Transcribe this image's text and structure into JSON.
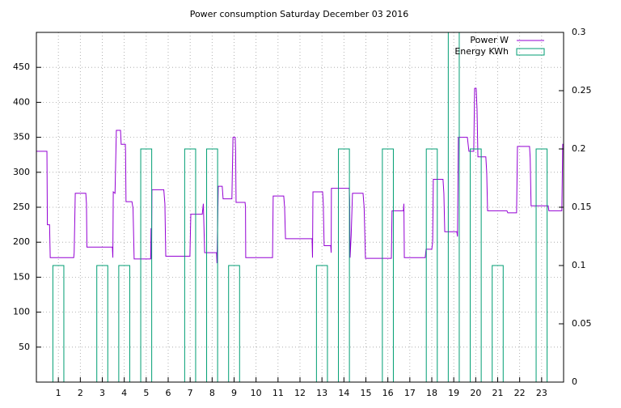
{
  "chart_data": {
    "type": "line",
    "title": "Power consumption Saturday December 03 2016",
    "xlim": [
      0,
      24
    ],
    "xticks": [
      1,
      2,
      3,
      4,
      5,
      6,
      7,
      8,
      9,
      10,
      11,
      12,
      13,
      14,
      15,
      16,
      17,
      18,
      19,
      20,
      21,
      22,
      23
    ],
    "ylim": [
      0,
      500
    ],
    "yticks": [
      50,
      100,
      150,
      200,
      250,
      300,
      350,
      400,
      450
    ],
    "y2lim": [
      0,
      0.3
    ],
    "y2ticks": [
      0,
      0.05,
      0.1,
      0.15,
      0.2,
      0.25,
      0.3
    ],
    "grid": true,
    "legend": "top-right",
    "series": [
      {
        "name": "Power W",
        "type": "line",
        "color": "#9400d3",
        "x": [
          0,
          0.48,
          0.5,
          0.6,
          0.63,
          1.7,
          1.72,
          1.77,
          2.25,
          2.28,
          2.3,
          3.46,
          3.48,
          3.5,
          3.58,
          3.64,
          3.83,
          3.86,
          4.05,
          4.06,
          4.08,
          4.35,
          4.4,
          4.45,
          5.2,
          5.22,
          5.24,
          5.26,
          5.8,
          5.85,
          5.89,
          6.99,
          7.03,
          7.55,
          7.6,
          7.66,
          8.2,
          8.22,
          8.28,
          8.46,
          8.5,
          8.9,
          8.95,
          9.05,
          9.07,
          9.09,
          9.5,
          9.52,
          9.53,
          10.75,
          10.78,
          11.26,
          11.3,
          11.34,
          12.55,
          12.57,
          12.59,
          13.03,
          13.06,
          13.1,
          13.4,
          13.42,
          13.43,
          14.24,
          14.26,
          14.28,
          14.33,
          14.39,
          14.87,
          14.92,
          14.98,
          16.16,
          16.19,
          16.71,
          16.73,
          16.75,
          17.7,
          17.74,
          18.0,
          18.04,
          18.07,
          18.51,
          18.55,
          18.59,
          19.14,
          19.17,
          19.21,
          19.62,
          19.69,
          19.91,
          19.95,
          20.02,
          20.06,
          20.1,
          20.46,
          20.5,
          20.54,
          21.42,
          21.46,
          21.86,
          21.9,
          22.45,
          22.48,
          22.52,
          23.3,
          23.33,
          23.92,
          23.96,
          24
        ],
        "values": [
          330,
          330,
          225,
          225,
          178,
          178,
          185,
          270,
          270,
          255,
          193,
          193,
          178,
          272,
          270,
          360,
          360,
          340,
          340,
          330,
          258,
          258,
          248,
          176,
          176,
          220,
          176,
          275,
          275,
          255,
          180,
          180,
          240,
          240,
          255,
          185,
          185,
          170,
          280,
          280,
          262,
          262,
          350,
          350,
          330,
          257,
          257,
          250,
          178,
          178,
          266,
          266,
          250,
          205,
          205,
          178,
          272,
          272,
          255,
          195,
          195,
          185,
          277,
          277,
          260,
          178,
          210,
          270,
          270,
          250,
          177,
          177,
          245,
          245,
          255,
          178,
          178,
          190,
          190,
          200,
          290,
          290,
          270,
          215,
          215,
          208,
          350,
          350,
          330,
          330,
          420,
          420,
          390,
          322,
          322,
          300,
          245,
          245,
          242,
          242,
          337,
          337,
          320,
          252,
          252,
          245,
          245,
          340,
          340
        ]
      },
      {
        "name": "Energy KWh",
        "type": "bar",
        "axis": "y2",
        "color": "#009e73",
        "x": [
          1,
          3,
          4,
          5,
          7,
          8,
          9,
          13,
          14,
          16,
          18,
          19,
          20,
          21,
          23
        ],
        "values": [
          0.1,
          0.1,
          0.1,
          0.2,
          0.2,
          0.2,
          0.1,
          0.1,
          0.2,
          0.2,
          0.2,
          0.3,
          0.2,
          0.1,
          0.2
        ]
      }
    ]
  }
}
